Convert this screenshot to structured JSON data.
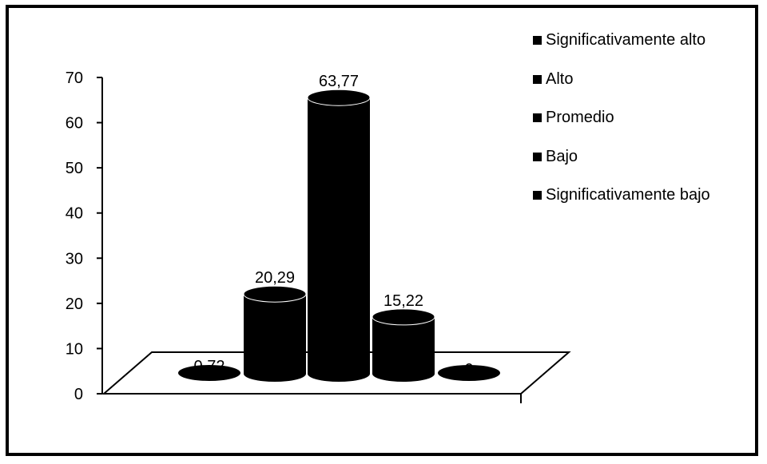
{
  "chart_data": {
    "type": "bar",
    "categories": [
      "Significativamente bajo",
      "Bajo",
      "Promedio",
      "Alto",
      "Significativamente alto"
    ],
    "values": [
      0.72,
      20.29,
      63.77,
      15.22,
      0
    ],
    "data_labels": [
      "0,72",
      "20,29",
      "63,77",
      "15,22",
      "0"
    ],
    "y_ticks": [
      "0",
      "10",
      "20",
      "30",
      "40",
      "50",
      "60",
      "70"
    ],
    "ylim": [
      0,
      70
    ],
    "bar_color": "#000000",
    "legend": {
      "position": "right",
      "entries": [
        "Significativamente alto",
        "Alto",
        "Promedio",
        "Bajo",
        "Significativamente bajo"
      ]
    },
    "title": "",
    "xlabel": "",
    "ylabel": "",
    "grid": false,
    "style": "3d-cylinder"
  }
}
